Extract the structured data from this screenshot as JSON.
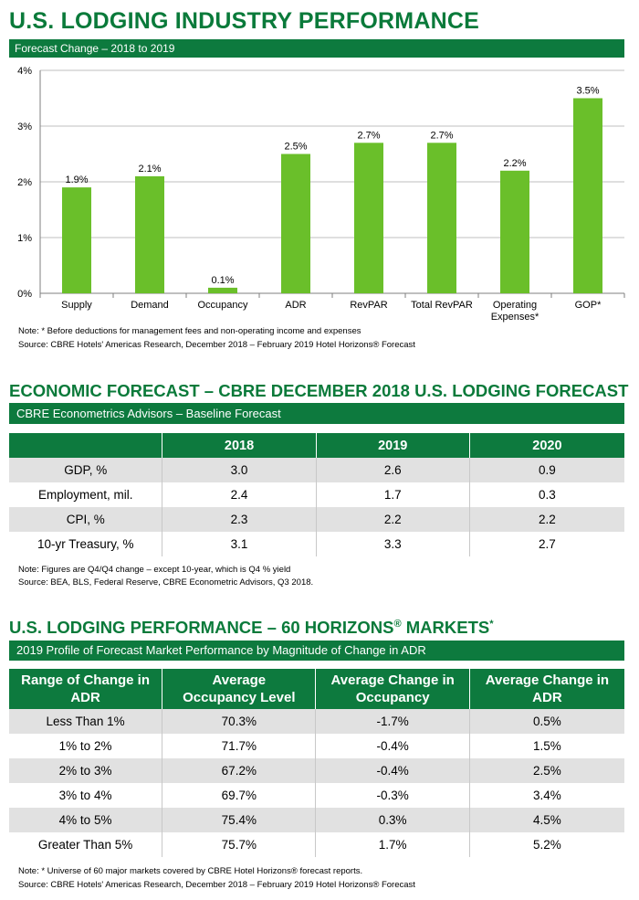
{
  "section1": {
    "title": "U.S. LODGING INDUSTRY PERFORMANCE",
    "subtitle": "Forecast Change – 2018 to 2019",
    "note": "Note: * Before deductions for management fees and non-operating income and expenses",
    "source": "Source: CBRE Hotels' Americas Research, December 2018 – February 2019 Hotel Horizons® Forecast"
  },
  "chart_data": {
    "type": "bar",
    "title": "Forecast Change – 2018 to 2019",
    "categories": [
      "Supply",
      "Demand",
      "Occupancy",
      "ADR",
      "RevPAR",
      "Total RevPAR",
      "Operating Expenses*",
      "GOP*"
    ],
    "category_lines": [
      [
        "Supply"
      ],
      [
        "Demand"
      ],
      [
        "Occupancy"
      ],
      [
        "ADR"
      ],
      [
        "RevPAR"
      ],
      [
        "Total RevPAR"
      ],
      [
        "Operating",
        "Expenses*"
      ],
      [
        "GOP*"
      ]
    ],
    "values": [
      1.9,
      2.1,
      0.1,
      2.5,
      2.7,
      2.7,
      2.2,
      3.5
    ],
    "value_labels": [
      "1.9%",
      "2.1%",
      "0.1%",
      "2.5%",
      "2.7%",
      "2.7%",
      "2.2%",
      "3.5%"
    ],
    "yticks": [
      0,
      1,
      2,
      3,
      4
    ],
    "ytick_labels": [
      "0%",
      "1%",
      "2%",
      "3%",
      "4%"
    ],
    "ylim": [
      0,
      4
    ],
    "xlabel": "",
    "ylabel": "",
    "grid": true,
    "bar_color": "#6abf2a"
  },
  "section2": {
    "title": "ECONOMIC FORECAST – CBRE DECEMBER 2018 U.S. LODGING FORECAST",
    "subtitle": "CBRE Econometrics Advisors – Baseline Forecast",
    "headers": [
      "",
      "2018",
      "2019",
      "2020"
    ],
    "rows": [
      [
        "GDP, %",
        "3.0",
        "2.6",
        "0.9"
      ],
      [
        "Employment, mil.",
        "2.4",
        "1.7",
        "0.3"
      ],
      [
        "CPI, %",
        "2.3",
        "2.2",
        "2.2"
      ],
      [
        "10-yr Treasury, %",
        "3.1",
        "3.3",
        "2.7"
      ]
    ],
    "note": "Note:  Figures are Q4/Q4 change – except 10-year, which is Q4 % yield",
    "source": "Source: BEA, BLS, Federal Reserve, CBRE Econometric Advisors, Q3 2018."
  },
  "section3": {
    "title_main": "U.S. LODGING PERFORMANCE – 60 HORIZONS",
    "title_reg": "®",
    "title_end": " MARKETS",
    "title_star": "*",
    "subtitle": "2019 Profile of Forecast Market Performance by Magnitude of Change in ADR",
    "headers": [
      [
        "Range of Change in",
        "ADR"
      ],
      [
        "Average",
        "Occupancy Level"
      ],
      [
        "Average Change in",
        "Occupancy"
      ],
      [
        "Average Change in",
        "ADR"
      ]
    ],
    "rows": [
      [
        "Less Than 1%",
        "70.3%",
        "-1.7%",
        "0.5%"
      ],
      [
        "1% to 2%",
        "71.7%",
        "-0.4%",
        "1.5%"
      ],
      [
        "2% to 3%",
        "67.2%",
        "-0.4%",
        "2.5%"
      ],
      [
        "3% to 4%",
        "69.7%",
        "-0.3%",
        "3.4%"
      ],
      [
        "4% to 5%",
        "75.4%",
        "0.3%",
        "4.5%"
      ],
      [
        "Greater Than 5%",
        "75.7%",
        "1.7%",
        "5.2%"
      ]
    ],
    "note": "Note:  * Universe of 60 major markets covered by CBRE Hotel Horizons® forecast reports.",
    "source": "Source: CBRE Hotels' Americas Research, December 2018 – February 2019 Hotel Horizons® Forecast"
  },
  "colors": {
    "brand_green": "#0d7a3e",
    "title_green": "#0a7a3a",
    "bar_green": "#6abf2a",
    "row_gray": "#e1e1e1"
  }
}
